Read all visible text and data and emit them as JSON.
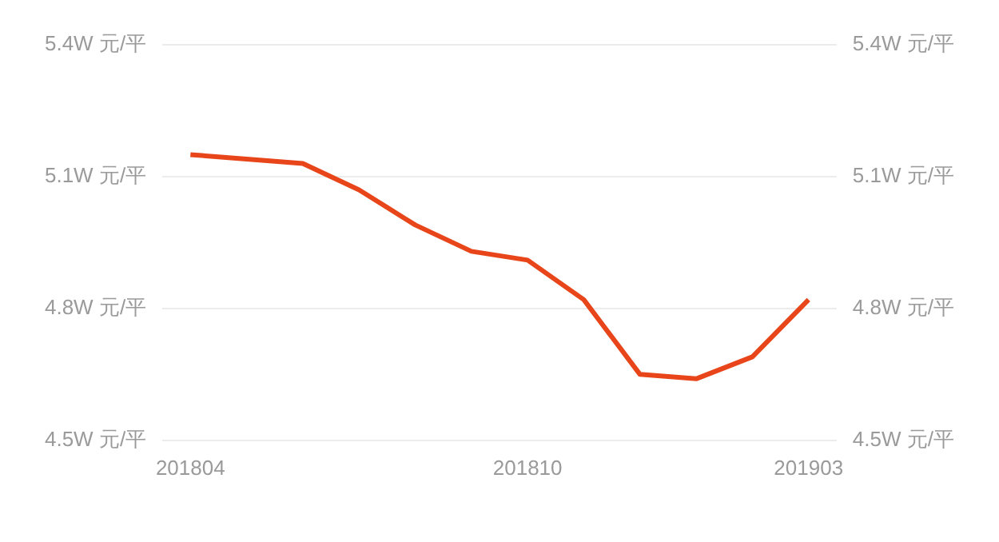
{
  "chart_data": {
    "type": "line",
    "categories": [
      "201804",
      null,
      null,
      null,
      null,
      null,
      "201810",
      null,
      null,
      null,
      null,
      "201903"
    ],
    "series": [
      {
        "color": "#e8461a",
        "values": [
          5.15,
          5.14,
          5.13,
          5.07,
          4.99,
          4.93,
          4.91,
          4.82,
          4.65,
          4.64,
          4.69,
          4.82
        ]
      }
    ],
    "ylim": [
      4.5,
      5.4
    ],
    "yticks": [
      {
        "value": 4.5,
        "label": "4.5W 元/平"
      },
      {
        "value": 4.8,
        "label": "4.8W 元/平"
      },
      {
        "value": 5.1,
        "label": "5.1W 元/平"
      },
      {
        "value": 5.4,
        "label": "5.4W 元/平"
      }
    ],
    "y2lim": [
      4.5,
      5.4
    ],
    "y2ticks": [
      {
        "value": 4.5,
        "label": "4.5W 元/平"
      },
      {
        "value": 4.8,
        "label": "4.8W 元/平"
      },
      {
        "value": 5.1,
        "label": "5.1W 元/平"
      },
      {
        "value": 5.4,
        "label": "5.4W 元/平"
      }
    ],
    "grid": "y",
    "legend": false,
    "marker": "none",
    "line_style": "solid"
  }
}
